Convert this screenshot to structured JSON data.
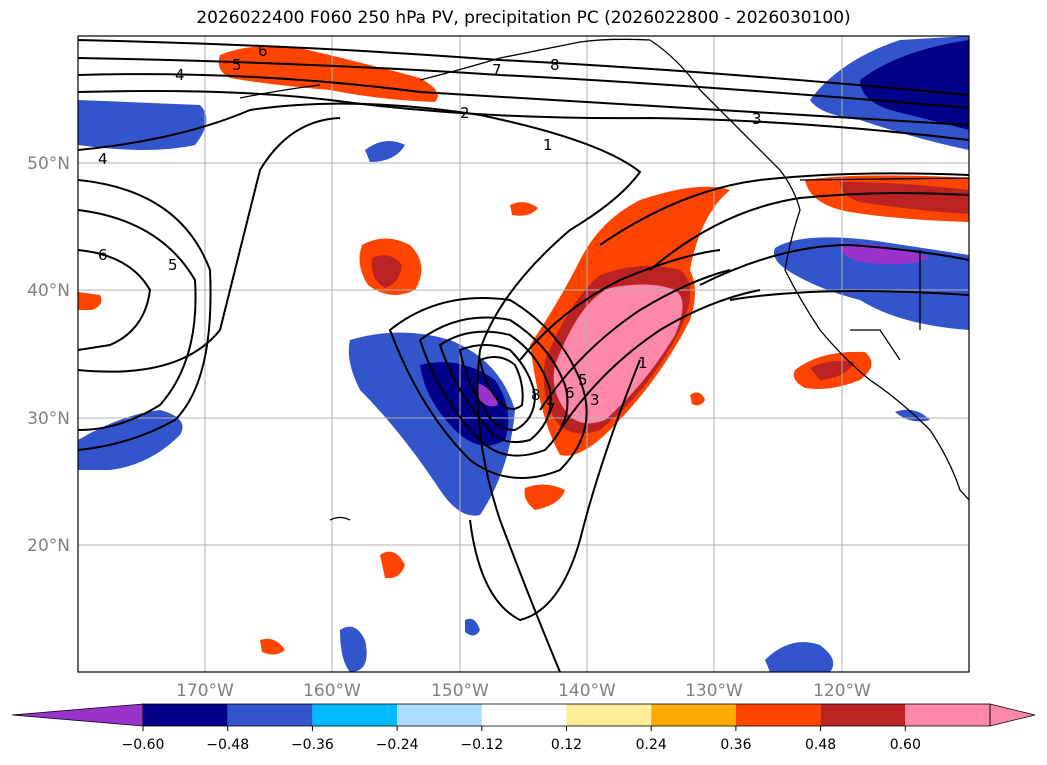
{
  "title": "2026022400 F060 250 hPa PV, precipitation PC (2026022800 - 2026030100)",
  "lat_labels": [
    "50°N",
    "40°N",
    "30°N",
    "20°N"
  ],
  "lon_labels": [
    "170°W",
    "160°W",
    "150°W",
    "140°W",
    "130°W",
    "120°W"
  ],
  "contour_labels": [
    "6",
    "5",
    "4",
    "7",
    "8",
    "2",
    "1",
    "3",
    "4",
    "6",
    "5",
    "8",
    "7",
    "6",
    "5",
    "3",
    "1"
  ],
  "colorbar": {
    "ticks": [
      "−0.60",
      "−0.48",
      "−0.36",
      "−0.24",
      "−0.12",
      "0.12",
      "0.24",
      "0.36",
      "0.48",
      "0.60"
    ],
    "colors": [
      "#9933cc",
      "#000088",
      "#3355cc",
      "#00bbff",
      "#aaddff",
      "#ffffff",
      "#ffee99",
      "#ffaa00",
      "#ff4400",
      "#bb2222",
      "#ff88aa",
      "#ff88aa"
    ]
  }
}
